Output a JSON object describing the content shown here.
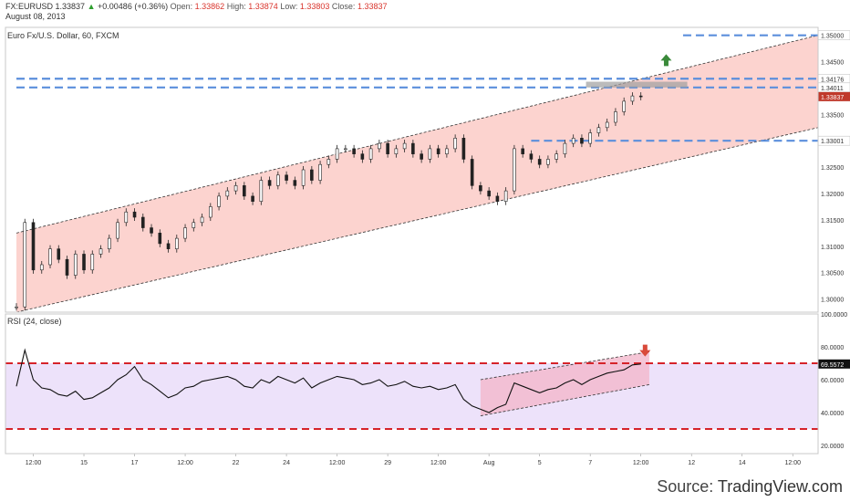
{
  "header": {
    "symbol": "FX:EURUSD",
    "last": "1.33837",
    "change_arrow": "▲",
    "change": "+0.00486 (+0.36%)",
    "open_label": "Open:",
    "open": "1.33862",
    "high_label": "High:",
    "high": "1.33874",
    "low_label": "Low:",
    "low": "1.33803",
    "close_label": "Close:",
    "close": "1.33837",
    "date": "August 08, 2013"
  },
  "credit": {
    "prefix": "Source: ",
    "brand": "TradingView.com"
  },
  "colors": {
    "channel_fill": "#fcd3cf",
    "rsi_fill": "#ede2fa",
    "rsi_channel_fill": "#f3b8cc",
    "hline_blue": "#5b8fdc",
    "rsi_band": "#d6232a",
    "up_arrow": "#3a8a3a",
    "down_arrow": "#d94a3a",
    "last_price_tag": "#c0392b"
  },
  "chart_data": [
    {
      "type": "candlestick",
      "title": "Euro Fx/U.S. Dollar, 60, FXCM",
      "ylim": [
        1.2975,
        1.3515
      ],
      "y_ticks": [
        "1.35000",
        "1.34500",
        "1.34176",
        "1.34011",
        "1.33837",
        "1.33500",
        "1.33001",
        "1.32500",
        "1.32000",
        "1.31500",
        "1.31000",
        "1.30500",
        "1.30000"
      ],
      "x_ticks": [
        "12:00",
        "15",
        "17",
        "12:00",
        "22",
        "24",
        "12:00",
        "29",
        "12:00",
        "Aug",
        "5",
        "7",
        "12:00",
        "12",
        "14",
        "12:00"
      ],
      "x_tick_values": [
        2,
        8,
        14,
        20,
        26,
        32,
        38,
        44,
        50,
        56,
        62,
        68,
        74,
        80,
        86,
        92
      ],
      "xlim": [
        0,
        95
      ],
      "horizontal_levels": [
        {
          "value": 1.35,
          "label": "1.35000",
          "from_x": 79
        },
        {
          "value": 1.34176,
          "label": "1.34176",
          "from_x": 0
        },
        {
          "value": 1.34011,
          "label": "1.34011",
          "from_x": 0
        },
        {
          "value": 1.33001,
          "label": "1.33001",
          "from_x": 61
        }
      ],
      "last_price": {
        "value": 1.33837,
        "label": "1.33837"
      },
      "channel": {
        "upper": [
          [
            0,
            1.3125
          ],
          [
            95,
            1.35
          ]
        ],
        "lower": [
          [
            0,
            1.2975
          ],
          [
            95,
            1.3325
          ]
        ]
      },
      "resistance_box": {
        "x": [
          67.5,
          79.5
        ],
        "ylim": [
          1.3401,
          1.3412
        ]
      },
      "marker": {
        "type": "up-arrow",
        "x": 77,
        "y": 1.3452
      },
      "series": [
        {
          "x": [
            0,
            1,
            2,
            3,
            4,
            5,
            6,
            7,
            8,
            9,
            10,
            11,
            12,
            13,
            14,
            15,
            16,
            17,
            18,
            19,
            20,
            21,
            22,
            23,
            24,
            25,
            26,
            27,
            28,
            29,
            30,
            31,
            32,
            33,
            34,
            35,
            36,
            37,
            38,
            39,
            40,
            41,
            42,
            43,
            44,
            45,
            46,
            47,
            48,
            49,
            50,
            51,
            52,
            53,
            54,
            55,
            56,
            57,
            58,
            59,
            60,
            61,
            62,
            63,
            64,
            65,
            66,
            67,
            68,
            69,
            70,
            71,
            72,
            73,
            74
          ],
          "y": [
            1.2985,
            1.3145,
            1.3055,
            1.3065,
            1.3095,
            1.3075,
            1.3045,
            1.3085,
            1.3055,
            1.3085,
            1.3095,
            1.3115,
            1.3145,
            1.3165,
            1.3155,
            1.3135,
            1.3125,
            1.3105,
            1.3095,
            1.3115,
            1.3135,
            1.3145,
            1.3155,
            1.3175,
            1.3195,
            1.3205,
            1.3215,
            1.3195,
            1.3185,
            1.3225,
            1.3215,
            1.3235,
            1.3225,
            1.3215,
            1.3245,
            1.3225,
            1.3255,
            1.3265,
            1.3285,
            1.3285,
            1.3275,
            1.3265,
            1.3285,
            1.3295,
            1.3275,
            1.3285,
            1.3295,
            1.3275,
            1.3265,
            1.3285,
            1.3275,
            1.3285,
            1.3305,
            1.3265,
            1.3215,
            1.3205,
            1.3195,
            1.3185,
            1.3205,
            1.3285,
            1.3275,
            1.3265,
            1.3255,
            1.3265,
            1.3275,
            1.3295,
            1.3305,
            1.3295,
            1.3315,
            1.3325,
            1.3335,
            1.3355,
            1.3375,
            1.3385,
            1.33837
          ]
        }
      ]
    },
    {
      "type": "line",
      "title": "RSI (24, close)",
      "ylim": [
        15,
        100
      ],
      "y_ticks": [
        "100.0000",
        "80.0000",
        "69.5572",
        "60.0000",
        "40.0000",
        "20.0000"
      ],
      "bands": [
        70,
        30
      ],
      "last_value": {
        "value": 69.5572,
        "label": "69.5572"
      },
      "rsi_channel": {
        "upper": [
          [
            55,
            60
          ],
          [
            75,
            77
          ]
        ],
        "lower": [
          [
            55,
            38
          ],
          [
            75,
            57
          ]
        ]
      },
      "marker": {
        "type": "down-arrow",
        "x": 74.5,
        "y": 78
      },
      "series": [
        {
          "name": "RSI",
          "x": [
            0,
            1,
            2,
            3,
            4,
            5,
            6,
            7,
            8,
            9,
            10,
            11,
            12,
            13,
            14,
            15,
            16,
            17,
            18,
            19,
            20,
            21,
            22,
            23,
            24,
            25,
            26,
            27,
            28,
            29,
            30,
            31,
            32,
            33,
            34,
            35,
            36,
            37,
            38,
            39,
            40,
            41,
            42,
            43,
            44,
            45,
            46,
            47,
            48,
            49,
            50,
            51,
            52,
            53,
            54,
            55,
            56,
            57,
            58,
            59,
            60,
            61,
            62,
            63,
            64,
            65,
            66,
            67,
            68,
            69,
            70,
            71,
            72,
            73,
            74
          ],
          "y": [
            56,
            78,
            60,
            55,
            54,
            51,
            50,
            53,
            48,
            49,
            52,
            55,
            60,
            63,
            68,
            60,
            57,
            53,
            49,
            51,
            55,
            56,
            59,
            60,
            61,
            62,
            60,
            56,
            55,
            60,
            58,
            62,
            60,
            58,
            61,
            55,
            58,
            60,
            62,
            61,
            60,
            57,
            58,
            60,
            56,
            57,
            59,
            56,
            55,
            56,
            54,
            55,
            57,
            48,
            44,
            42,
            40,
            43,
            45,
            58,
            56,
            54,
            52,
            54,
            55,
            58,
            60,
            57,
            60,
            62,
            64,
            65,
            66,
            69,
            69.56
          ]
        }
      ]
    }
  ]
}
